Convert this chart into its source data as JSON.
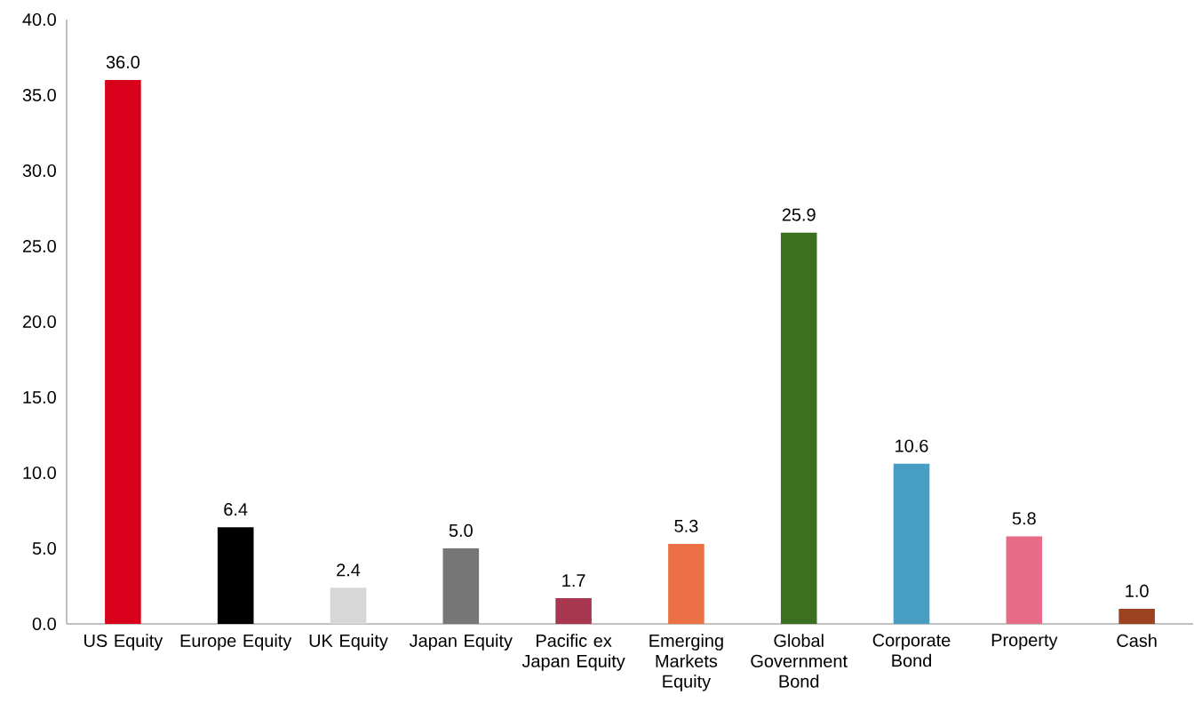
{
  "chart_data": {
    "type": "bar",
    "categories": [
      "US Equity",
      "Europe Equity",
      "UK Equity",
      "Japan Equity",
      "Pacific ex Japan Equity",
      "Emerging Markets Equity",
      "Global Government Bond",
      "Corporate Bond",
      "Property",
      "Cash"
    ],
    "values": [
      36.0,
      6.4,
      2.4,
      5.0,
      1.7,
      5.3,
      25.9,
      10.6,
      5.8,
      1.0
    ],
    "value_labels": [
      "36.0",
      "6.4",
      "2.4",
      "5.0",
      "1.7",
      "5.3",
      "25.9",
      "10.6",
      "5.8",
      "1.0"
    ],
    "colors": [
      "#d9001b",
      "#000000",
      "#d7d7d7",
      "#767676",
      "#a83850",
      "#eb7046",
      "#3c7020",
      "#479ec2",
      "#e86c87",
      "#9b4221"
    ],
    "ylim": [
      0,
      40
    ],
    "yticks": [
      {
        "value": 0,
        "label": "0.0"
      },
      {
        "value": 5,
        "label": "5.0"
      },
      {
        "value": 10,
        "label": "10.0"
      },
      {
        "value": 15,
        "label": "15.0"
      },
      {
        "value": 20,
        "label": "20.0"
      },
      {
        "value": 25,
        "label": "25.0"
      },
      {
        "value": 30,
        "label": "30.0"
      },
      {
        "value": 35,
        "label": "35.0"
      },
      {
        "value": 40,
        "label": "40.0"
      }
    ]
  }
}
